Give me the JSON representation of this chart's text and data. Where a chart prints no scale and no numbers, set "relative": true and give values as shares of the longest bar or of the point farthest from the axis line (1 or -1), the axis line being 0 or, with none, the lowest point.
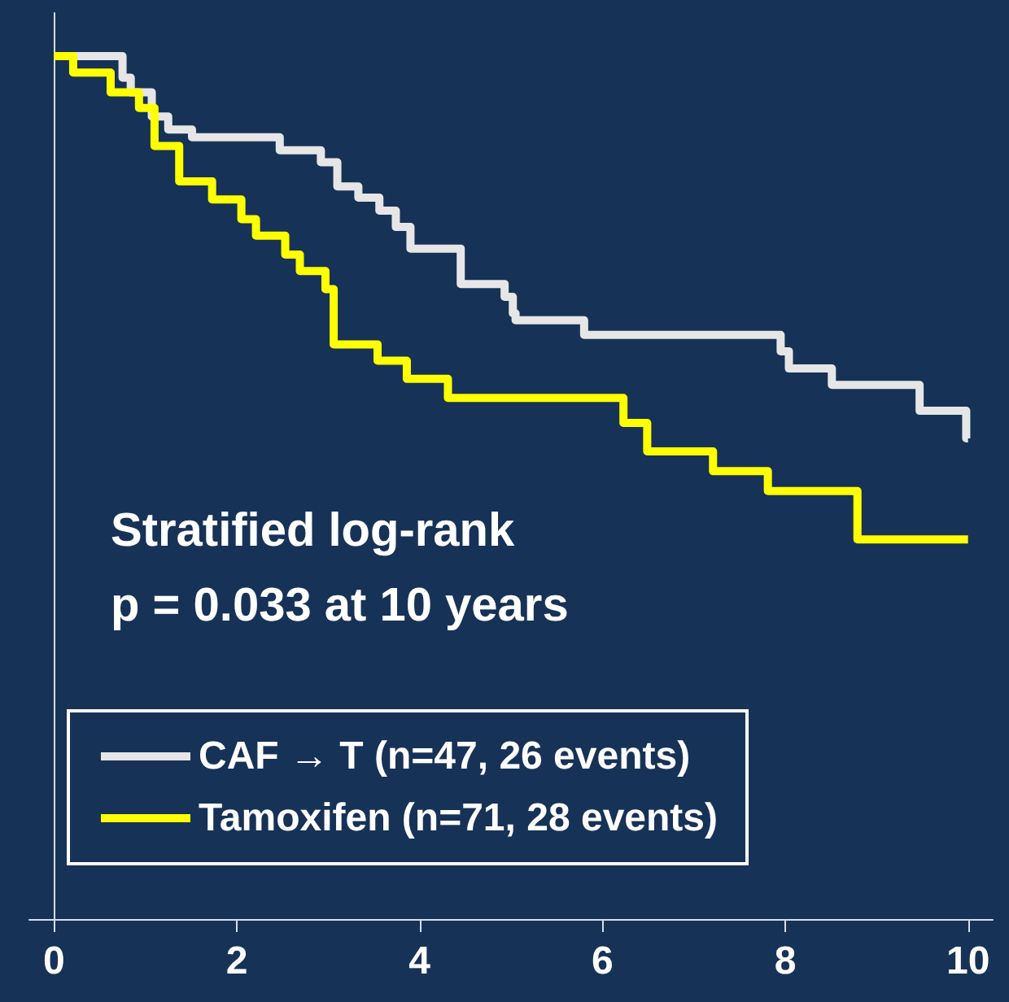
{
  "chart_data": {
    "type": "step",
    "relative": true,
    "xlim": [
      -0.27,
      10.27
    ],
    "xticks": [
      0,
      2,
      4,
      6,
      8,
      10
    ],
    "series": [
      {
        "name": "CAF → T (n=47, 26 events)",
        "color": "#e6e6e6",
        "x": [
          0,
          0.75,
          0.84,
          1.07,
          1.25,
          1.51,
          2.47,
          2.92,
          3.1,
          3.33,
          3.56,
          3.74,
          3.9,
          4.45,
          4.93,
          5.02,
          5.05,
          5.8,
          7.95,
          8.04,
          8.51,
          9.47,
          9.98,
          10
        ],
        "values": [
          1.0,
          0.975,
          0.958,
          0.93,
          0.915,
          0.906,
          0.891,
          0.877,
          0.849,
          0.836,
          0.821,
          0.802,
          0.777,
          0.736,
          0.721,
          0.702,
          0.694,
          0.677,
          0.658,
          0.638,
          0.619,
          0.589,
          0.557,
          0.557
        ]
      },
      {
        "name": "Tamoxifen (n=71, 28 events)",
        "color": "#ffff00",
        "x": [
          0,
          0.21,
          0.62,
          0.93,
          1.1,
          1.37,
          1.73,
          2.05,
          2.21,
          2.53,
          2.69,
          2.97,
          3.06,
          3.54,
          3.86,
          4.31,
          6.23,
          6.49,
          7.21,
          7.81,
          8.79,
          10
        ],
        "values": [
          1.0,
          0.981,
          0.958,
          0.94,
          0.896,
          0.855,
          0.834,
          0.811,
          0.792,
          0.77,
          0.751,
          0.73,
          0.666,
          0.647,
          0.626,
          0.604,
          0.575,
          0.542,
          0.519,
          0.496,
          0.44,
          0.44
        ]
      }
    ],
    "annotations": [
      "Stratified log-rank",
      "p = 0.033 at 10 years"
    ],
    "legend": "bottom",
    "marker": "none",
    "line_style": "solid"
  }
}
